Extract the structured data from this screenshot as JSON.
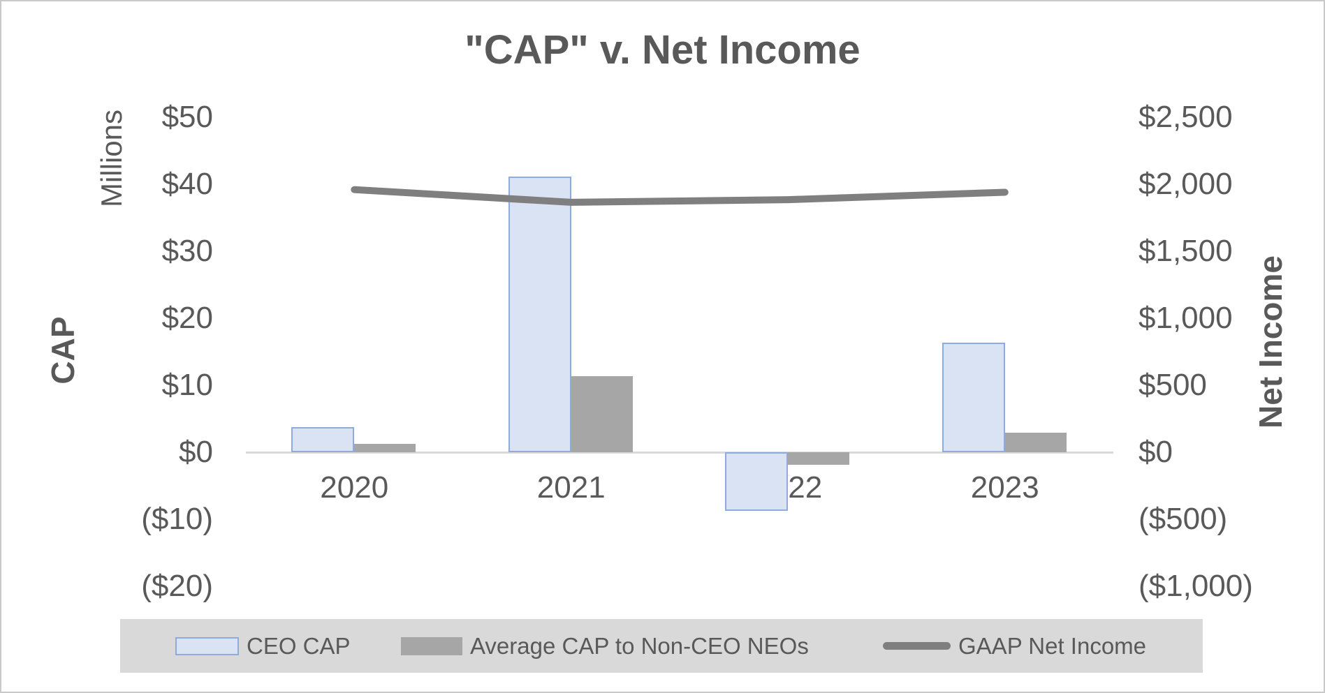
{
  "title": "\"CAP\" v. Net Income",
  "chart_data": {
    "type": "combo",
    "title": "\"CAP\" v. Net Income",
    "categories": [
      "2020",
      "2021",
      "2022",
      "2023"
    ],
    "series": [
      {
        "name": "CEO CAP",
        "type": "bar",
        "axis": "left",
        "fill": "#dae3f3",
        "border": "#8faadc",
        "values": [
          3.8,
          41.1,
          -8.7,
          16.4
        ]
      },
      {
        "name": "Average CAP to Non-CEO NEOs",
        "type": "bar",
        "axis": "left",
        "fill": "#a6a6a6",
        "border": "",
        "values": [
          1.3,
          11.4,
          -1.9,
          2.9
        ]
      },
      {
        "name": "GAAP Net Income",
        "type": "line",
        "axis": "right",
        "color": "#7f7f7f",
        "values": [
          1960,
          1865,
          1885,
          1940
        ]
      }
    ],
    "left_axis": {
      "title": "CAP",
      "units_label": "Millions",
      "range": [
        -20,
        50
      ],
      "tick_interval": 10,
      "ticks": [
        {
          "label": "$50",
          "value": 50
        },
        {
          "label": "$40",
          "value": 40
        },
        {
          "label": "$30",
          "value": 30
        },
        {
          "label": "$20",
          "value": 20
        },
        {
          "label": "$10",
          "value": 10
        },
        {
          "label": "$0",
          "value": 0
        },
        {
          "label": "($10)",
          "value": -10
        },
        {
          "label": "($20)",
          "value": -20
        }
      ]
    },
    "right_axis": {
      "title": "Net Income",
      "range": [
        -1000,
        2500
      ],
      "tick_interval": 500,
      "ticks": [
        {
          "label": "$2,500",
          "value": 2500
        },
        {
          "label": "$2,000",
          "value": 2000
        },
        {
          "label": "$1,500",
          "value": 1500
        },
        {
          "label": "$1,000",
          "value": 1000
        },
        {
          "label": "$500",
          "value": 500
        },
        {
          "label": "$0",
          "value": 0
        },
        {
          "label": "($500)",
          "value": -500
        },
        {
          "label": "($1,000)",
          "value": -1000
        }
      ]
    },
    "x_axis": {
      "labels": [
        "2020",
        "2021",
        "2022",
        "2023"
      ]
    },
    "legend": {
      "position": "bottom",
      "background": "#d9d9d9",
      "items": [
        "CEO CAP",
        "Average CAP to Non-CEO NEOs",
        "GAAP Net Income"
      ]
    },
    "grid": false
  },
  "colors": {
    "text": "#595959",
    "axis_line": "#d9d9d9",
    "ceo_cap_fill": "#dae3f3",
    "ceo_cap_border": "#8faadc",
    "neo_cap_fill": "#a6a6a6",
    "net_income_line": "#7f7f7f",
    "legend_background": "#d9d9d9",
    "canvas_border": "#c9c9c9"
  }
}
